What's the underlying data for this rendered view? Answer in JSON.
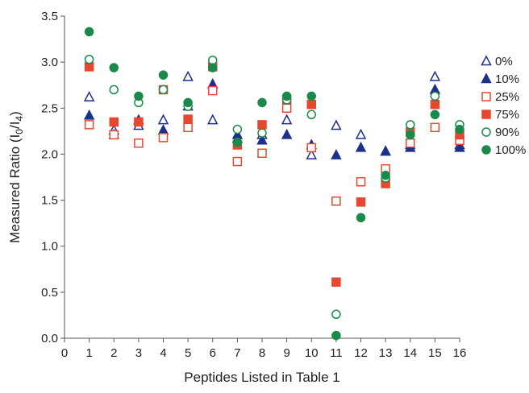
{
  "chart_data": {
    "type": "scatter",
    "title": "",
    "xlabel": "Peptides Listed in Table 1",
    "ylabel_parts": [
      "Measured Ratio (I",
      "0",
      "/I",
      "4",
      ")"
    ],
    "xlim": [
      0,
      16
    ],
    "ylim": [
      0,
      3.5
    ],
    "x_ticks": [
      "0",
      "1",
      "2",
      "3",
      "4",
      "5",
      "6",
      "7",
      "8",
      "9",
      "10",
      "11",
      "12",
      "13",
      "14",
      "15",
      "16"
    ],
    "y_ticks": [
      "0.0",
      "0.5",
      "1.0",
      "1.5",
      "2.0",
      "2.5",
      "3.0",
      "3.5"
    ],
    "grid": false,
    "legend_position": "right",
    "x": [
      1,
      2,
      3,
      4,
      5,
      6,
      7,
      8,
      9,
      10,
      11,
      12,
      13,
      14,
      15,
      16
    ],
    "series": [
      {
        "name": "0%",
        "marker": "triangle-open",
        "color": "#1f2f8c",
        "values": [
          2.62,
          2.26,
          2.31,
          2.37,
          2.84,
          2.37,
          2.17,
          2.21,
          2.37,
          1.99,
          2.31,
          2.21,
          2.03,
          2.1,
          2.84,
          2.1
        ]
      },
      {
        "name": "10%",
        "marker": "triangle-filled",
        "color": "#1f2f8c",
        "values": [
          2.42,
          2.21,
          2.37,
          2.26,
          2.52,
          2.76,
          2.21,
          2.15,
          2.21,
          2.1,
          1.99,
          2.07,
          2.03,
          2.07,
          2.7,
          2.07
        ]
      },
      {
        "name": "25%",
        "marker": "square-open",
        "color": "#e8472f",
        "values": [
          2.32,
          2.21,
          2.12,
          2.18,
          2.29,
          2.69,
          1.92,
          2.01,
          2.5,
          2.07,
          1.49,
          1.7,
          1.84,
          2.12,
          2.29,
          2.15
        ]
      },
      {
        "name": "75%",
        "marker": "square-filled",
        "color": "#e8472f",
        "values": [
          2.95,
          2.35,
          2.35,
          2.7,
          2.38,
          2.95,
          2.1,
          2.32,
          2.59,
          2.54,
          0.61,
          1.48,
          1.68,
          2.24,
          2.54,
          2.21
        ]
      },
      {
        "name": "90%",
        "marker": "circle-open",
        "color": "#1a8a4a",
        "values": [
          3.03,
          2.7,
          2.56,
          2.7,
          2.52,
          3.02,
          2.27,
          2.23,
          2.59,
          2.43,
          0.26,
          null,
          1.74,
          2.32,
          2.63,
          2.32
        ]
      },
      {
        "name": "100%",
        "marker": "circle-filled",
        "color": "#1a8a4a",
        "values": [
          3.33,
          2.94,
          2.63,
          2.86,
          2.56,
          2.94,
          2.13,
          2.56,
          2.63,
          2.63,
          0.03,
          1.31,
          1.77,
          2.21,
          2.43,
          2.27
        ]
      }
    ]
  }
}
